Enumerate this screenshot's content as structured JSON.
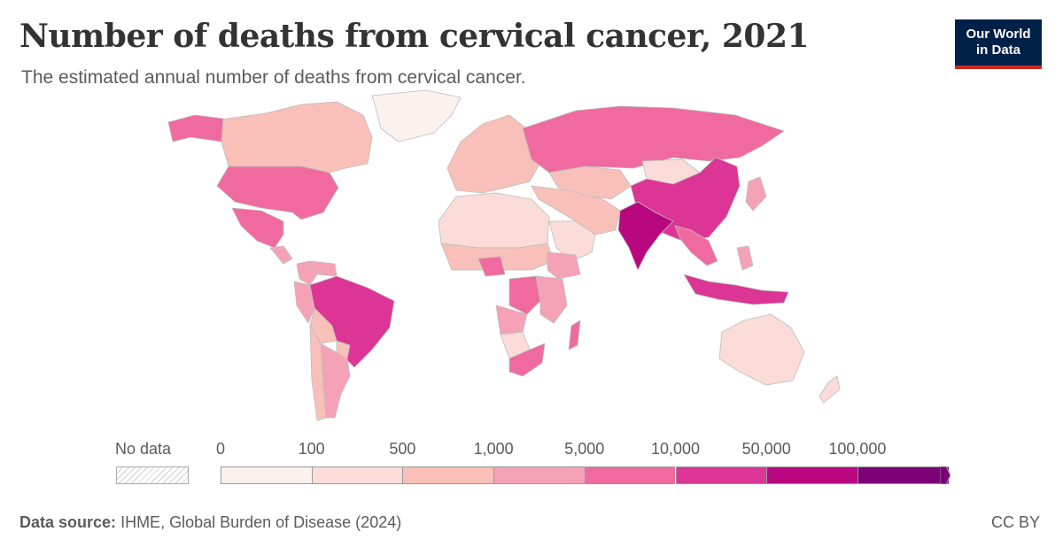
{
  "header": {
    "title": "Number of deaths from cervical cancer, 2021",
    "subtitle": "The estimated annual number of deaths from cervical cancer."
  },
  "logo": {
    "line1": "Our World",
    "line2": "in Data",
    "bg_color": "#002147",
    "accent_color": "#ce261e"
  },
  "legend": {
    "no_data_label": "No data",
    "tick_labels": [
      "0",
      "100",
      "500",
      "1,000",
      "5,000",
      "10,000",
      "50,000",
      "100,000"
    ],
    "colors": [
      "#fdf1ef",
      "#fbdcd8",
      "#f8c0b8",
      "#f6a2b6",
      "#f06a9f",
      "#dc3595",
      "#b9087f",
      "#7c0076"
    ]
  },
  "chart_data": {
    "type": "choropleth",
    "title": "Number of deaths from cervical cancer, 2021",
    "subtitle": "The estimated annual number of deaths from cervical cancer.",
    "bins": [
      {
        "min": 0,
        "max": 100
      },
      {
        "min": 100,
        "max": 500
      },
      {
        "min": 500,
        "max": 1000
      },
      {
        "min": 1000,
        "max": 5000
      },
      {
        "min": 5000,
        "max": 10000
      },
      {
        "min": 10000,
        "max": 50000
      },
      {
        "min": 50000,
        "max": 100000
      },
      {
        "min": 100000,
        "max": null
      }
    ],
    "regions": [
      {
        "name": "Greenland",
        "bin": 0
      },
      {
        "name": "Canada",
        "bin": 2
      },
      {
        "name": "Alaska",
        "bin": 4
      },
      {
        "name": "United States",
        "bin": 4
      },
      {
        "name": "Mexico",
        "bin": 4
      },
      {
        "name": "Central America",
        "bin": 3
      },
      {
        "name": "Colombia",
        "bin": 3
      },
      {
        "name": "Venezuela",
        "bin": 3
      },
      {
        "name": "Peru",
        "bin": 3
      },
      {
        "name": "Bolivia",
        "bin": 2
      },
      {
        "name": "Brazil",
        "bin": 5
      },
      {
        "name": "Argentina",
        "bin": 3
      },
      {
        "name": "Chile",
        "bin": 2
      },
      {
        "name": "Paraguay",
        "bin": 2
      },
      {
        "name": "Europe",
        "bin": 2
      },
      {
        "name": "Russia",
        "bin": 4
      },
      {
        "name": "Kazakhstan",
        "bin": 2
      },
      {
        "name": "Mongolia",
        "bin": 1
      },
      {
        "name": "China",
        "bin": 5
      },
      {
        "name": "India",
        "bin": 6
      },
      {
        "name": "Middle East",
        "bin": 2
      },
      {
        "name": "Saudi Arabia",
        "bin": 1
      },
      {
        "name": "Southeast Asia",
        "bin": 4
      },
      {
        "name": "Indonesia",
        "bin": 5
      },
      {
        "name": "Philippines",
        "bin": 3
      },
      {
        "name": "Japan",
        "bin": 3
      },
      {
        "name": "Australia",
        "bin": 1
      },
      {
        "name": "New Zealand",
        "bin": 1
      },
      {
        "name": "North Africa",
        "bin": 1
      },
      {
        "name": "Sahel",
        "bin": 2
      },
      {
        "name": "Nigeria",
        "bin": 4
      },
      {
        "name": "Ethiopia",
        "bin": 3
      },
      {
        "name": "DR Congo",
        "bin": 4
      },
      {
        "name": "East Africa",
        "bin": 3
      },
      {
        "name": "Angola",
        "bin": 3
      },
      {
        "name": "South Africa",
        "bin": 4
      },
      {
        "name": "Madagascar",
        "bin": 4
      },
      {
        "name": "Namibia / Botswana",
        "bin": 1
      }
    ]
  },
  "footer": {
    "source_label": "Data source:",
    "source_text": "IHME, Global Burden of Disease (2024)",
    "license": "CC BY"
  }
}
